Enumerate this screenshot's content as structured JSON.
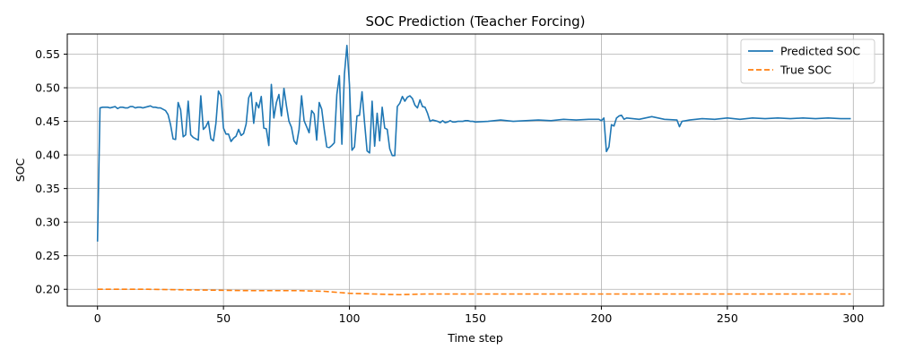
{
  "chart_data": {
    "type": "line",
    "title": "SOC Prediction (Teacher Forcing)",
    "xlabel": "Time step",
    "ylabel": "SOC",
    "xlim": [
      -12,
      312
    ],
    "ylim": [
      0.175,
      0.58
    ],
    "xticks": [
      0,
      50,
      100,
      150,
      200,
      250,
      300
    ],
    "yticks": [
      0.2,
      0.25,
      0.3,
      0.35,
      0.4,
      0.45,
      0.5,
      0.55
    ],
    "grid": true,
    "legend_position": "top-right",
    "series": [
      {
        "name": "Predicted SOC",
        "color": "#1f77b4",
        "style": "solid",
        "points": [
          [
            0,
            0.271
          ],
          [
            1,
            0.47
          ],
          [
            2,
            0.471
          ],
          [
            3,
            0.471
          ],
          [
            4,
            0.471
          ],
          [
            5,
            0.47
          ],
          [
            6,
            0.471
          ],
          [
            7,
            0.472
          ],
          [
            8,
            0.469
          ],
          [
            9,
            0.471
          ],
          [
            10,
            0.471
          ],
          [
            11,
            0.47
          ],
          [
            12,
            0.47
          ],
          [
            13,
            0.472
          ],
          [
            14,
            0.472
          ],
          [
            15,
            0.47
          ],
          [
            16,
            0.471
          ],
          [
            17,
            0.471
          ],
          [
            18,
            0.47
          ],
          [
            19,
            0.471
          ],
          [
            20,
            0.472
          ],
          [
            21,
            0.473
          ],
          [
            22,
            0.471
          ],
          [
            23,
            0.471
          ],
          [
            24,
            0.47
          ],
          [
            25,
            0.47
          ],
          [
            26,
            0.468
          ],
          [
            27,
            0.466
          ],
          [
            28,
            0.46
          ],
          [
            29,
            0.445
          ],
          [
            30,
            0.424
          ],
          [
            31,
            0.423
          ],
          [
            32,
            0.478
          ],
          [
            33,
            0.467
          ],
          [
            34,
            0.427
          ],
          [
            35,
            0.43
          ],
          [
            36,
            0.48
          ],
          [
            37,
            0.43
          ],
          [
            38,
            0.426
          ],
          [
            39,
            0.424
          ],
          [
            40,
            0.422
          ],
          [
            41,
            0.488
          ],
          [
            42,
            0.438
          ],
          [
            43,
            0.442
          ],
          [
            44,
            0.45
          ],
          [
            45,
            0.424
          ],
          [
            46,
            0.421
          ],
          [
            47,
            0.447
          ],
          [
            48,
            0.495
          ],
          [
            49,
            0.488
          ],
          [
            50,
            0.44
          ],
          [
            51,
            0.431
          ],
          [
            52,
            0.431
          ],
          [
            53,
            0.42
          ],
          [
            54,
            0.425
          ],
          [
            55,
            0.428
          ],
          [
            56,
            0.438
          ],
          [
            57,
            0.429
          ],
          [
            58,
            0.432
          ],
          [
            59,
            0.446
          ],
          [
            60,
            0.485
          ],
          [
            61,
            0.493
          ],
          [
            62,
            0.447
          ],
          [
            63,
            0.478
          ],
          [
            64,
            0.47
          ],
          [
            65,
            0.487
          ],
          [
            66,
            0.44
          ],
          [
            67,
            0.439
          ],
          [
            68,
            0.414
          ],
          [
            69,
            0.505
          ],
          [
            70,
            0.455
          ],
          [
            71,
            0.478
          ],
          [
            72,
            0.49
          ],
          [
            73,
            0.458
          ],
          [
            74,
            0.499
          ],
          [
            75,
            0.473
          ],
          [
            76,
            0.45
          ],
          [
            77,
            0.441
          ],
          [
            78,
            0.421
          ],
          [
            79,
            0.416
          ],
          [
            80,
            0.438
          ],
          [
            81,
            0.488
          ],
          [
            82,
            0.451
          ],
          [
            83,
            0.442
          ],
          [
            84,
            0.433
          ],
          [
            85,
            0.466
          ],
          [
            86,
            0.461
          ],
          [
            87,
            0.422
          ],
          [
            88,
            0.478
          ],
          [
            89,
            0.468
          ],
          [
            90,
            0.438
          ],
          [
            91,
            0.412
          ],
          [
            92,
            0.411
          ],
          [
            93,
            0.414
          ],
          [
            94,
            0.418
          ],
          [
            95,
            0.49
          ],
          [
            96,
            0.518
          ],
          [
            97,
            0.416
          ],
          [
            98,
            0.52
          ],
          [
            99,
            0.563
          ],
          [
            100,
            0.505
          ],
          [
            101,
            0.407
          ],
          [
            102,
            0.412
          ],
          [
            103,
            0.458
          ],
          [
            104,
            0.459
          ],
          [
            105,
            0.494
          ],
          [
            106,
            0.448
          ],
          [
            107,
            0.406
          ],
          [
            108,
            0.403
          ],
          [
            109,
            0.48
          ],
          [
            110,
            0.413
          ],
          [
            111,
            0.462
          ],
          [
            112,
            0.421
          ],
          [
            113,
            0.471
          ],
          [
            114,
            0.44
          ],
          [
            115,
            0.438
          ],
          [
            116,
            0.409
          ],
          [
            117,
            0.399
          ],
          [
            118,
            0.399
          ],
          [
            119,
            0.472
          ],
          [
            120,
            0.477
          ],
          [
            121,
            0.487
          ],
          [
            122,
            0.48
          ],
          [
            123,
            0.486
          ],
          [
            124,
            0.488
          ],
          [
            125,
            0.484
          ],
          [
            126,
            0.474
          ],
          [
            127,
            0.47
          ],
          [
            128,
            0.482
          ],
          [
            129,
            0.472
          ],
          [
            130,
            0.471
          ],
          [
            131,
            0.462
          ],
          [
            132,
            0.45
          ],
          [
            133,
            0.452
          ],
          [
            134,
            0.451
          ],
          [
            135,
            0.45
          ],
          [
            136,
            0.448
          ],
          [
            137,
            0.451
          ],
          [
            138,
            0.448
          ],
          [
            139,
            0.449
          ],
          [
            140,
            0.451
          ],
          [
            141,
            0.449
          ],
          [
            142,
            0.449
          ],
          [
            143,
            0.45
          ],
          [
            144,
            0.45
          ],
          [
            145,
            0.45
          ],
          [
            146,
            0.451
          ],
          [
            147,
            0.451
          ],
          [
            148,
            0.45
          ],
          [
            149,
            0.45
          ],
          [
            150,
            0.449
          ],
          [
            155,
            0.45
          ],
          [
            160,
            0.452
          ],
          [
            165,
            0.45
          ],
          [
            170,
            0.451
          ],
          [
            175,
            0.452
          ],
          [
            180,
            0.451
          ],
          [
            185,
            0.453
          ],
          [
            190,
            0.452
          ],
          [
            195,
            0.453
          ],
          [
            199,
            0.453
          ],
          [
            200,
            0.451
          ],
          [
            201,
            0.455
          ],
          [
            202,
            0.405
          ],
          [
            203,
            0.412
          ],
          [
            204,
            0.445
          ],
          [
            205,
            0.443
          ],
          [
            206,
            0.455
          ],
          [
            207,
            0.458
          ],
          [
            208,
            0.459
          ],
          [
            209,
            0.453
          ],
          [
            210,
            0.455
          ],
          [
            215,
            0.453
          ],
          [
            220,
            0.457
          ],
          [
            225,
            0.453
          ],
          [
            230,
            0.452
          ],
          [
            231,
            0.442
          ],
          [
            232,
            0.45
          ],
          [
            235,
            0.452
          ],
          [
            240,
            0.454
          ],
          [
            245,
            0.453
          ],
          [
            250,
            0.455
          ],
          [
            255,
            0.453
          ],
          [
            260,
            0.455
          ],
          [
            265,
            0.454
          ],
          [
            270,
            0.455
          ],
          [
            275,
            0.454
          ],
          [
            280,
            0.455
          ],
          [
            285,
            0.454
          ],
          [
            290,
            0.455
          ],
          [
            295,
            0.454
          ],
          [
            299,
            0.454
          ]
        ]
      },
      {
        "name": "True SOC",
        "color": "#ff7f0e",
        "style": "dashed",
        "points": [
          [
            0,
            0.2
          ],
          [
            20,
            0.2
          ],
          [
            40,
            0.199
          ],
          [
            60,
            0.198
          ],
          [
            80,
            0.198
          ],
          [
            90,
            0.197
          ],
          [
            100,
            0.194
          ],
          [
            110,
            0.193
          ],
          [
            120,
            0.192
          ],
          [
            130,
            0.193
          ],
          [
            150,
            0.193
          ],
          [
            200,
            0.193
          ],
          [
            250,
            0.193
          ],
          [
            299,
            0.193
          ]
        ]
      }
    ]
  }
}
